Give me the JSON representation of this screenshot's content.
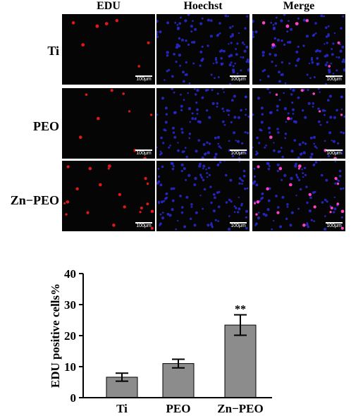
{
  "figure": {
    "columns": [
      "EDU",
      "Hoechst",
      "Merge"
    ],
    "rows": [
      "Ti",
      "PEO",
      "Zn−PEO"
    ],
    "scale_bar_label": "100μm"
  },
  "chart_data": {
    "type": "bar",
    "categories": [
      "Ti",
      "PEO",
      "Zn−PEO"
    ],
    "values": [
      6.6,
      11.0,
      23.4
    ],
    "errors": [
      1.3,
      1.4,
      3.3
    ],
    "ylabel": "EDU positive cells%",
    "yticks": [
      0,
      10,
      20,
      30,
      40
    ],
    "ylim": [
      0,
      40
    ],
    "annotations": [
      {
        "category": "Zn−PEO",
        "text": "**"
      }
    ],
    "bar_color": "#8c8c8c"
  }
}
